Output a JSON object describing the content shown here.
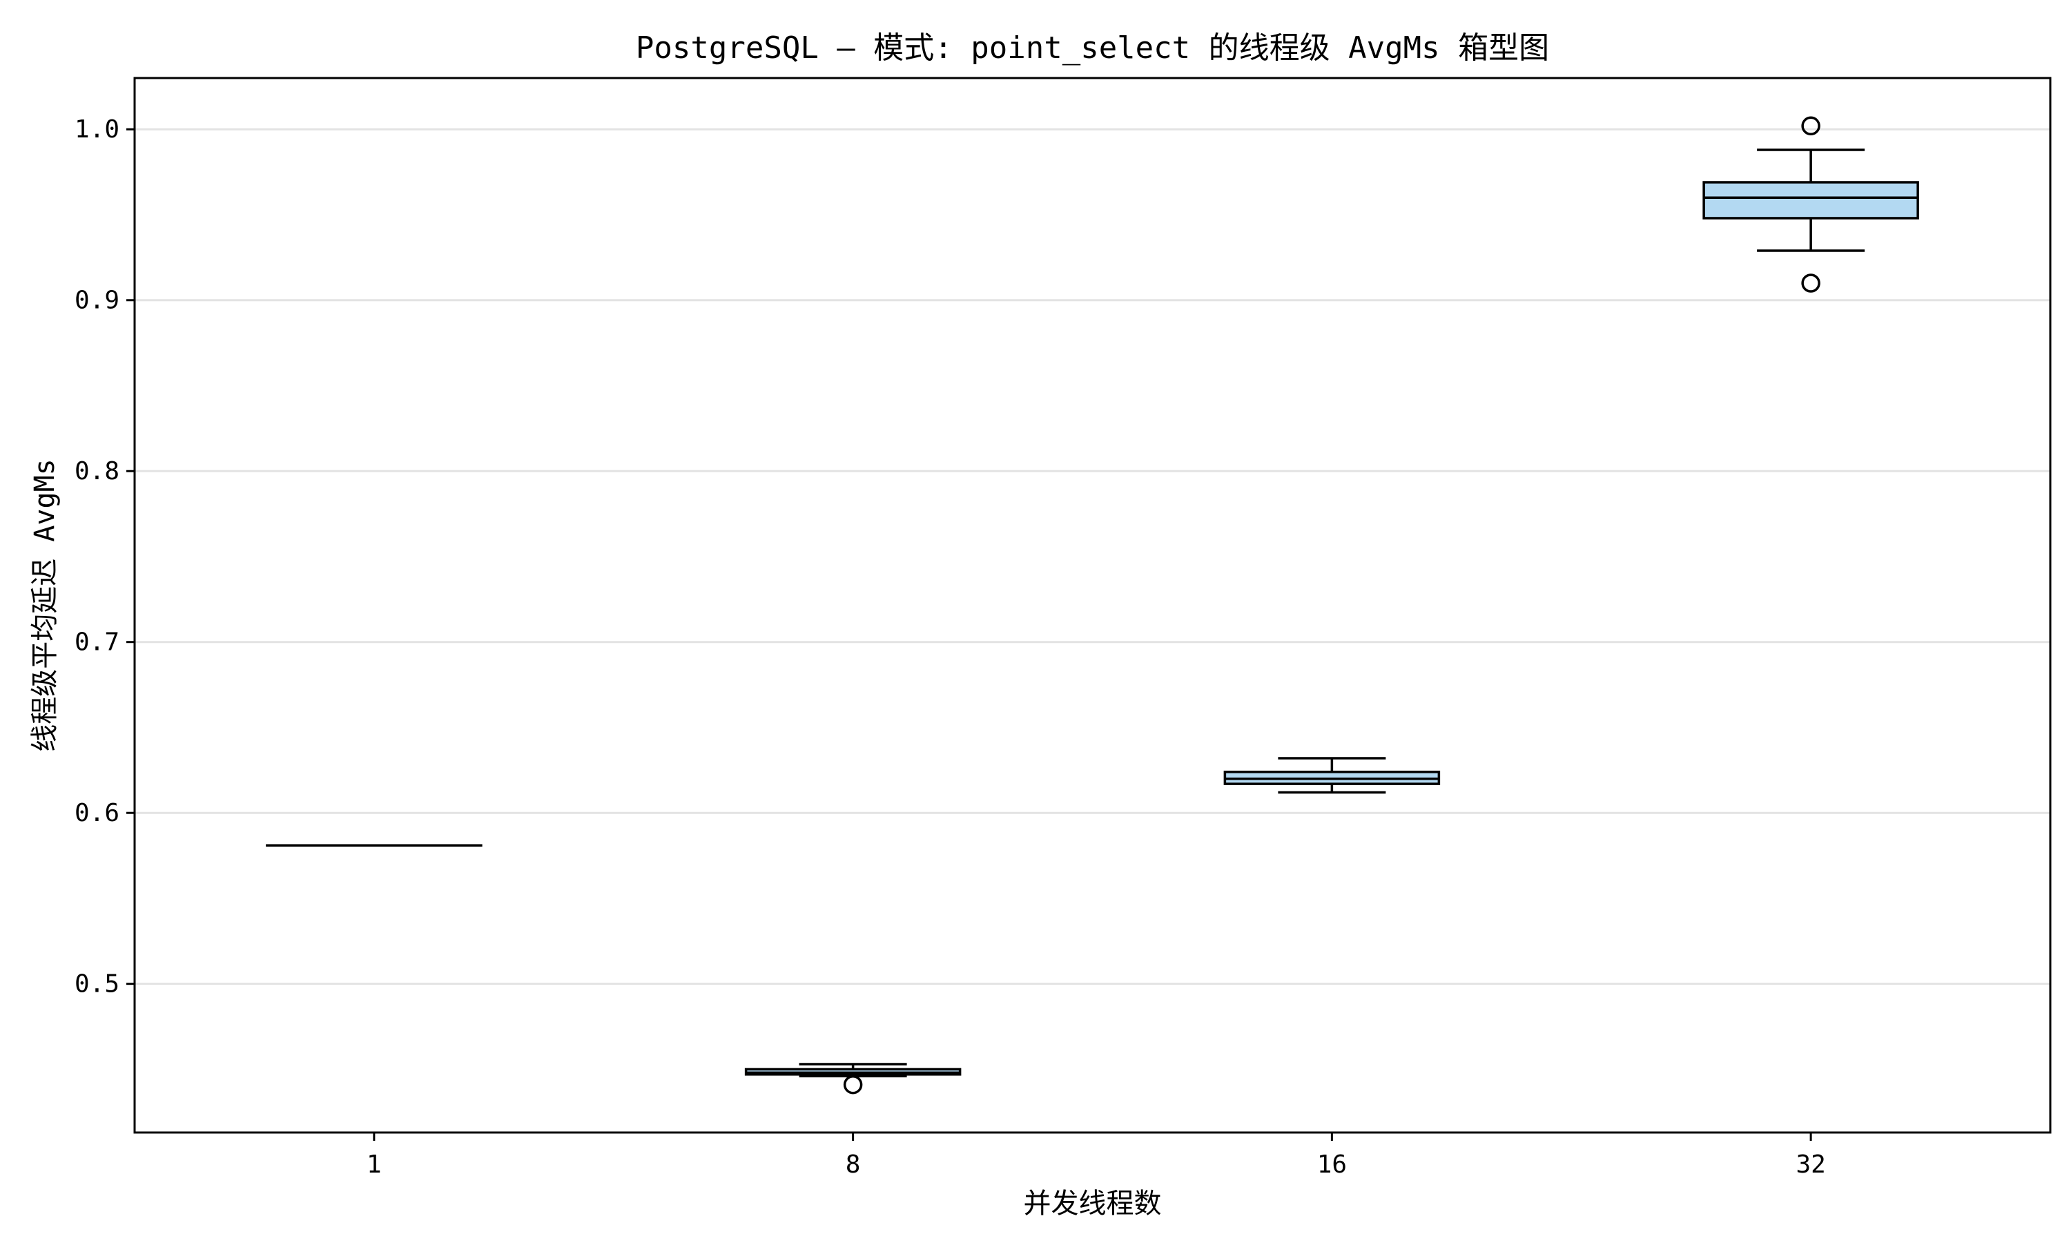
{
  "chart_data": {
    "type": "box",
    "title": "PostgreSQL — 模式: point_select 的线程级 AvgMs 箱型图",
    "xlabel": "并发线程数",
    "ylabel": "线程级平均延迟 AvgMs",
    "categories": [
      "1",
      "8",
      "16",
      "32"
    ],
    "ylim": [
      0.413,
      1.03
    ],
    "yticks": [
      0.5,
      0.6,
      0.7,
      0.8,
      0.9,
      1.0
    ],
    "ytick_labels": [
      "0.5",
      "0.6",
      "0.7",
      "0.8",
      "0.9",
      "1.0"
    ],
    "grid": "horizontal",
    "box_color": "#b3d9f2",
    "boxes": [
      {
        "category": "1",
        "whisker_low": 0.581,
        "q1": 0.581,
        "median": 0.581,
        "q3": 0.581,
        "whisker_high": 0.581,
        "outliers": []
      },
      {
        "category": "8",
        "whisker_low": 0.446,
        "q1": 0.447,
        "median": 0.448,
        "q3": 0.45,
        "whisker_high": 0.453,
        "outliers": [
          0.441
        ]
      },
      {
        "category": "16",
        "whisker_low": 0.612,
        "q1": 0.617,
        "median": 0.62,
        "q3": 0.624,
        "whisker_high": 0.632,
        "outliers": []
      },
      {
        "category": "32",
        "whisker_low": 0.929,
        "q1": 0.948,
        "median": 0.96,
        "q3": 0.969,
        "whisker_high": 0.988,
        "outliers": [
          1.002,
          0.91
        ]
      }
    ]
  }
}
